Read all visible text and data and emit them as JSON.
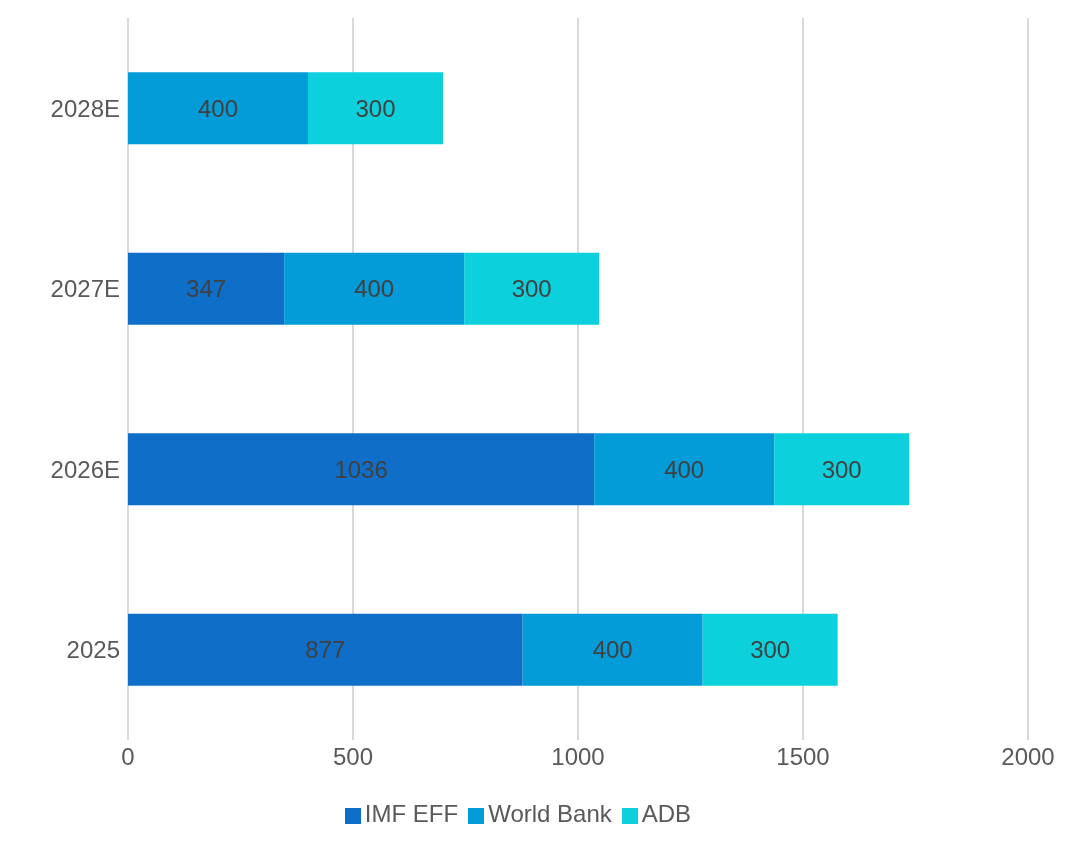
{
  "chart_data": {
    "type": "bar",
    "orientation": "horizontal",
    "stacked": true,
    "categories": [
      "2028E",
      "2027E",
      "2026E",
      "2025"
    ],
    "series": [
      {
        "name": "IMF EFF",
        "color": "#0e6ec8",
        "values": [
          null,
          347,
          1036,
          877
        ]
      },
      {
        "name": "World Bank",
        "color": "#039bd8",
        "values": [
          400,
          400,
          400,
          400
        ]
      },
      {
        "name": "ADB",
        "color": "#0cd0db",
        "values": [
          300,
          300,
          300,
          300
        ]
      }
    ],
    "xlim": [
      0,
      2000
    ],
    "xticks": [
      0,
      500,
      1000,
      1500,
      2000
    ],
    "grid": "x",
    "legend": "bottom",
    "data_labels": true
  }
}
